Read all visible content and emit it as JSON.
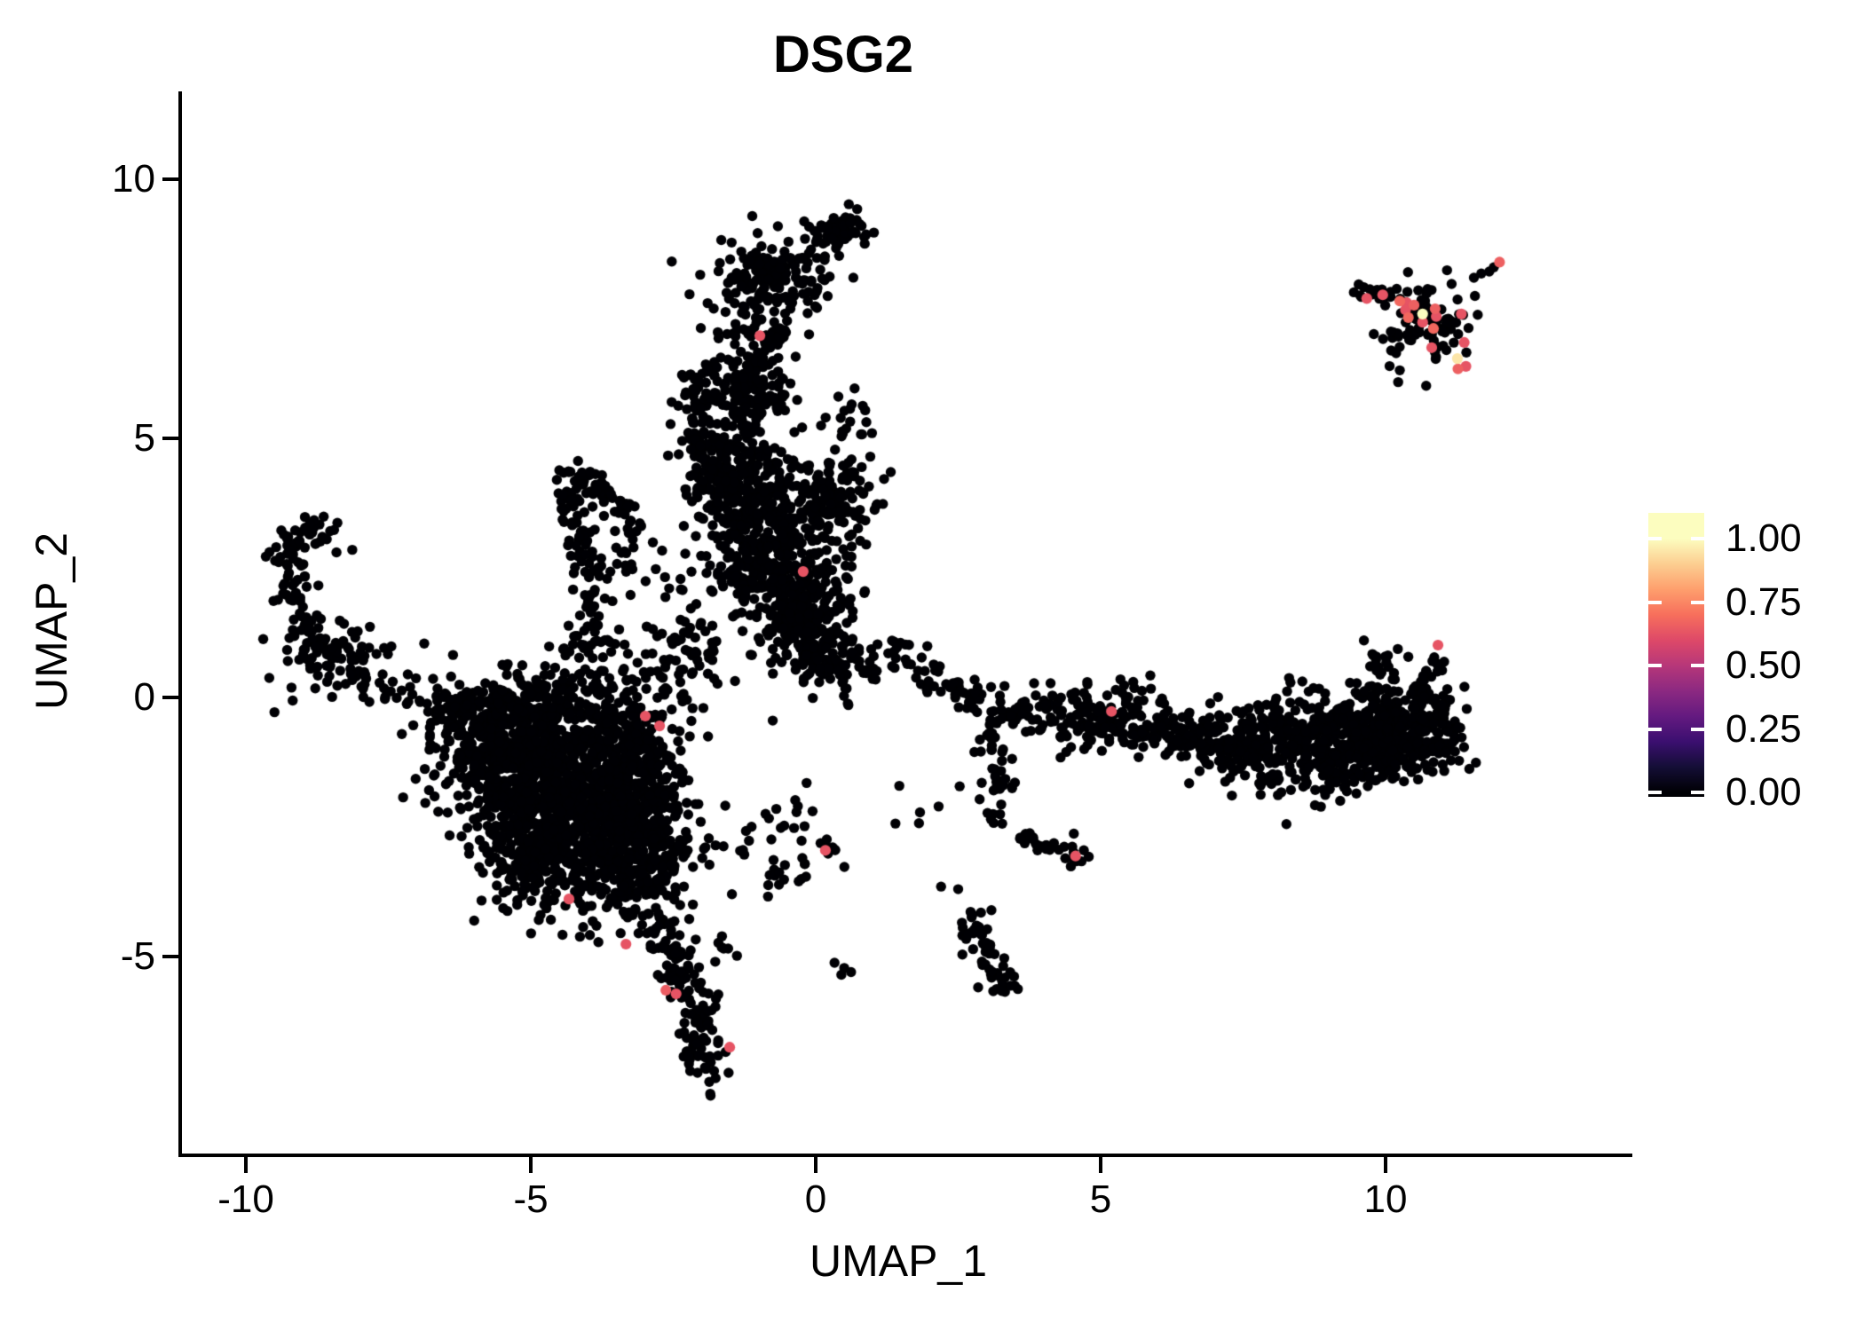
{
  "title": "DSG2",
  "axes": {
    "x": {
      "label": "UMAP_1",
      "ticks": [
        -10,
        -5,
        0,
        5,
        10
      ]
    },
    "y": {
      "label": "UMAP_2",
      "ticks": [
        10,
        5,
        0,
        -5
      ]
    }
  },
  "legend": {
    "tick_labels": [
      "1.00",
      "0.75",
      "0.50",
      "0.25",
      "0.00"
    ],
    "tick_values": [
      1.0,
      0.75,
      0.5,
      0.25,
      0.0
    ]
  },
  "colors": {
    "background": "#ffffff",
    "text": "#000000",
    "axis": "#000000",
    "point_base": "#000004",
    "expressing_pink": "#de4968",
    "highlight_yellow": "#fcfdbf",
    "magma_stops": [
      [
        0.0,
        "#000004"
      ],
      [
        0.1,
        "#140e36"
      ],
      [
        0.2,
        "#3b0f70"
      ],
      [
        0.3,
        "#641a80"
      ],
      [
        0.4,
        "#8c2981"
      ],
      [
        0.5,
        "#b73779"
      ],
      [
        0.6,
        "#de4968"
      ],
      [
        0.7,
        "#f76f5c"
      ],
      [
        0.8,
        "#fe9f6d"
      ],
      [
        0.9,
        "#fcce91"
      ],
      [
        1.0,
        "#fcfdbf"
      ]
    ]
  },
  "chart_data": {
    "type": "scatter",
    "title": "DSG2",
    "xlabel": "UMAP_1",
    "ylabel": "UMAP_2",
    "x_ticks": [
      -10,
      -5,
      0,
      5,
      10
    ],
    "y_ticks": [
      10,
      5,
      0,
      -5
    ],
    "xlim": [
      -11.1,
      14.3
    ],
    "ylim": [
      -8.8,
      11.7
    ],
    "grid": false,
    "legend_position": "right",
    "colorbar": {
      "range": [
        0,
        1
      ],
      "ticks": [
        1.0,
        0.75,
        0.5,
        0.25,
        0.0
      ],
      "palette": "magma"
    },
    "point_radius_px": 5.7,
    "n_points_approx": 5900,
    "clusters": [
      {
        "name": "left-hook",
        "kind": "path",
        "pts": [
          [
            -8.45,
            3.35
          ],
          [
            -9.0,
            3.2
          ],
          [
            -9.3,
            2.6
          ],
          [
            -9.2,
            1.9
          ],
          [
            -8.8,
            1.4
          ]
        ],
        "jitter": 0.16,
        "n": 80
      },
      {
        "name": "left-blob",
        "kind": "gaussian",
        "cx": -8.5,
        "cy": 0.8,
        "sx": 0.45,
        "sy": 0.4,
        "n": 100
      },
      {
        "name": "left-chain",
        "kind": "path",
        "pts": [
          [
            -7.9,
            0.4
          ],
          [
            -7.3,
            0.15
          ],
          [
            -6.7,
            -0.1
          ],
          [
            -6.2,
            -0.3
          ]
        ],
        "jitter": 0.22,
        "n": 40
      },
      {
        "name": "left-strays",
        "kind": "points",
        "pts": [
          [
            -6.87,
            1.04
          ],
          [
            -8.41,
            2.8
          ]
        ]
      },
      {
        "name": "mass-core-1",
        "kind": "gaussian",
        "cx": -5.4,
        "cy": -1.1,
        "sx": 0.65,
        "sy": 0.6,
        "n": 450
      },
      {
        "name": "mass-core-2",
        "kind": "gaussian",
        "cx": -4.4,
        "cy": -2.1,
        "sx": 0.8,
        "sy": 0.75,
        "n": 600
      },
      {
        "name": "mass-right",
        "kind": "gaussian",
        "cx": -3.5,
        "cy": -1.1,
        "sx": 0.55,
        "sy": 0.7,
        "n": 300
      },
      {
        "name": "mass-upperleft",
        "kind": "gaussian",
        "cx": -5.7,
        "cy": -0.35,
        "sx": 0.5,
        "sy": 0.35,
        "n": 120
      },
      {
        "name": "mass-lower-right",
        "kind": "gaussian",
        "cx": -3.2,
        "cy": -3.3,
        "sx": 0.5,
        "sy": 0.55,
        "n": 220
      },
      {
        "name": "mass-lower-left",
        "kind": "gaussian",
        "cx": -4.8,
        "cy": -3.2,
        "sx": 0.5,
        "sy": 0.5,
        "n": 180
      },
      {
        "name": "mass-top-edge",
        "kind": "gaussian",
        "cx": -4.5,
        "cy": -0.1,
        "sx": 0.9,
        "sy": 0.4,
        "n": 130
      },
      {
        "name": "mass-right-edge",
        "kind": "gaussian",
        "cx": -2.9,
        "cy": -2.2,
        "sx": 0.4,
        "sy": 0.6,
        "n": 150
      },
      {
        "name": "mass-tail",
        "kind": "path",
        "pts": [
          [
            -2.85,
            -4.3
          ],
          [
            -2.5,
            -5.0
          ],
          [
            -2.25,
            -5.6
          ],
          [
            -2.1,
            -6.2
          ],
          [
            -2.0,
            -6.9
          ],
          [
            -1.95,
            -7.35
          ]
        ],
        "jitter": 0.2,
        "n": 150
      },
      {
        "name": "tail-side",
        "kind": "gaussian",
        "cx": -1.62,
        "cy": -4.85,
        "sx": 0.12,
        "sy": 0.15,
        "n": 7
      },
      {
        "name": "lambda-ridge",
        "kind": "path",
        "pts": [
          [
            -4.45,
            4.5
          ],
          [
            -3.95,
            4.05
          ],
          [
            -3.5,
            3.7
          ],
          [
            -3.2,
            3.45
          ]
        ],
        "jitter": 0.13,
        "n": 55
      },
      {
        "name": "lambda-leg",
        "kind": "path",
        "pts": [
          [
            -4.5,
            4.3
          ],
          [
            -4.25,
            3.55
          ],
          [
            -4.05,
            2.8
          ],
          [
            -3.95,
            2.1
          ],
          [
            -3.88,
            1.4
          ],
          [
            -3.85,
            0.95
          ]
        ],
        "jitter": 0.15,
        "n": 80
      },
      {
        "name": "lambda-inner",
        "kind": "gaussian",
        "cx": -3.35,
        "cy": 2.85,
        "sx": 0.45,
        "sy": 0.4,
        "n": 35
      },
      {
        "name": "lambda-connector",
        "kind": "path",
        "pts": [
          [
            -3.9,
            0.7
          ],
          [
            -4.2,
            0.3
          ]
        ],
        "jitter": 0.3,
        "n": 25
      },
      {
        "name": "arm-top-blob",
        "kind": "gaussian",
        "cx": 0.45,
        "cy": 9.05,
        "sx": 0.3,
        "sy": 0.2,
        "n": 55
      },
      {
        "name": "arm-head",
        "kind": "gaussian",
        "cx": -0.8,
        "cy": 8.15,
        "sx": 0.5,
        "sy": 0.35,
        "n": 150
      },
      {
        "name": "arm-upper",
        "kind": "path",
        "pts": [
          [
            -0.85,
            7.6
          ],
          [
            -1.0,
            7.0
          ],
          [
            -1.1,
            6.4
          ],
          [
            -1.2,
            5.8
          ],
          [
            -1.35,
            5.2
          ]
        ],
        "jitter": 0.33,
        "n": 220
      },
      {
        "name": "arm-left-branch",
        "kind": "path",
        "pts": [
          [
            -1.95,
            6.25
          ],
          [
            -2.1,
            5.65
          ],
          [
            -2.1,
            5.05
          ],
          [
            -1.95,
            4.6
          ]
        ],
        "jitter": 0.22,
        "n": 80
      },
      {
        "name": "arm-mid",
        "kind": "gaussian",
        "cx": -1.35,
        "cy": 4.25,
        "sx": 0.5,
        "sy": 0.45,
        "n": 180
      },
      {
        "name": "arm-low-1",
        "kind": "gaussian",
        "cx": -0.95,
        "cy": 3.3,
        "sx": 0.55,
        "sy": 0.55,
        "n": 240
      },
      {
        "name": "arm-low-2",
        "kind": "gaussian",
        "cx": -0.5,
        "cy": 2.3,
        "sx": 0.5,
        "sy": 0.45,
        "n": 210
      },
      {
        "name": "arm-low-3",
        "kind": "gaussian",
        "cx": -0.2,
        "cy": 1.5,
        "sx": 0.45,
        "sy": 0.4,
        "n": 160
      },
      {
        "name": "arm-right-blob",
        "kind": "gaussian",
        "cx": 0.35,
        "cy": 3.8,
        "sx": 0.38,
        "sy": 0.42,
        "n": 110
      },
      {
        "name": "arm-right-edge",
        "kind": "gaussian",
        "cx": 0.5,
        "cy": 5.2,
        "sx": 0.3,
        "sy": 0.5,
        "n": 25
      },
      {
        "name": "arm-neck",
        "kind": "gaussian",
        "cx": 0.3,
        "cy": 0.7,
        "sx": 0.45,
        "sy": 0.35,
        "n": 90
      },
      {
        "name": "bridge-sparse",
        "kind": "gaussian",
        "cx": -2.3,
        "cy": 0.9,
        "sx": 0.55,
        "sy": 0.65,
        "n": 80
      },
      {
        "name": "mid-sparse",
        "kind": "gaussian",
        "cx": -0.6,
        "cy": -2.7,
        "sx": 0.7,
        "sy": 0.6,
        "n": 30
      },
      {
        "name": "mid-clump-a",
        "kind": "gaussian",
        "cx": -0.75,
        "cy": -3.45,
        "sx": 0.18,
        "sy": 0.18,
        "n": 9
      },
      {
        "name": "mid-clump-b",
        "kind": "gaussian",
        "cx": 0.25,
        "cy": -2.88,
        "sx": 0.12,
        "sy": 0.12,
        "n": 8
      },
      {
        "name": "mid-strays",
        "kind": "points",
        "pts": [
          [
            -0.17,
            -3.46
          ],
          [
            0.33,
            -5.12
          ],
          [
            0.5,
            -5.22
          ],
          [
            0.62,
            -5.3
          ],
          [
            0.45,
            -5.35
          ],
          [
            2.2,
            -3.65
          ],
          [
            2.5,
            -3.7
          ]
        ]
      },
      {
        "name": "rarm-start",
        "kind": "path",
        "pts": [
          [
            1.35,
            0.9
          ],
          [
            1.9,
            0.5
          ],
          [
            2.45,
            0.12
          ],
          [
            3.0,
            -0.15
          ],
          [
            3.55,
            -0.32
          ],
          [
            4.0,
            -0.42
          ]
        ],
        "jitter": 0.17,
        "n": 90
      },
      {
        "name": "rarm-band",
        "kind": "path",
        "pts": [
          [
            4.1,
            -0.5
          ],
          [
            4.8,
            -0.52
          ],
          [
            5.5,
            -0.58
          ],
          [
            6.2,
            -0.68
          ],
          [
            6.9,
            -0.88
          ],
          [
            7.6,
            -1.05
          ]
        ],
        "jitter": 0.24,
        "n": 240
      },
      {
        "name": "rarm-above",
        "kind": "gaussian",
        "cx": 5.1,
        "cy": -0.08,
        "sx": 0.9,
        "sy": 0.22,
        "n": 40
      },
      {
        "name": "rarm-mass-1",
        "kind": "gaussian",
        "cx": 8.5,
        "cy": -0.95,
        "sx": 0.75,
        "sy": 0.45,
        "n": 360
      },
      {
        "name": "rarm-mass-2",
        "kind": "gaussian",
        "cx": 9.8,
        "cy": -0.75,
        "sx": 0.55,
        "sy": 0.5,
        "n": 280
      },
      {
        "name": "rarm-tip",
        "kind": "gaussian",
        "cx": 10.7,
        "cy": -0.55,
        "sx": 0.38,
        "sy": 0.42,
        "n": 150
      },
      {
        "name": "rarm-rise",
        "kind": "path",
        "pts": [
          [
            10.55,
            -0.05
          ],
          [
            10.8,
            0.45
          ],
          [
            10.88,
            0.8
          ]
        ],
        "jitter": 0.1,
        "n": 22
      },
      {
        "name": "rarm-mini",
        "kind": "gaussian",
        "cx": 9.95,
        "cy": 0.75,
        "sx": 0.13,
        "sy": 0.22,
        "n": 13
      },
      {
        "name": "rarm-single",
        "kind": "points",
        "pts": [
          [
            9.62,
            1.1
          ]
        ]
      },
      {
        "name": "rbranch-down",
        "kind": "path",
        "pts": [
          [
            3.05,
            -0.7
          ],
          [
            3.2,
            -1.3
          ],
          [
            3.3,
            -1.9
          ],
          [
            3.15,
            -2.45
          ]
        ],
        "jitter": 0.14,
        "n": 40
      },
      {
        "name": "rbranch-chain",
        "kind": "path",
        "pts": [
          [
            3.5,
            -2.6
          ],
          [
            3.9,
            -2.8
          ],
          [
            4.25,
            -2.95
          ]
        ],
        "jitter": 0.1,
        "n": 20
      },
      {
        "name": "rbranch-clump",
        "kind": "gaussian",
        "cx": 4.55,
        "cy": -3.05,
        "sx": 0.14,
        "sy": 0.12,
        "n": 11
      },
      {
        "name": "rdrip",
        "kind": "path",
        "pts": [
          [
            2.75,
            -4.25
          ],
          [
            2.95,
            -4.7
          ],
          [
            3.1,
            -5.1
          ],
          [
            3.3,
            -5.5
          ],
          [
            3.42,
            -5.75
          ]
        ],
        "jitter": 0.15,
        "n": 60
      },
      {
        "name": "rbelow-sparse",
        "kind": "gaussian",
        "cx": 2.2,
        "cy": -1.7,
        "sx": 0.45,
        "sy": 0.45,
        "n": 8
      },
      {
        "name": "topright-main",
        "kind": "gaussian",
        "cx": 10.75,
        "cy": 7.25,
        "sx": 0.42,
        "sy": 0.4,
        "n": 85
      },
      {
        "name": "topright-left-chain",
        "kind": "path",
        "pts": [
          [
            9.45,
            7.85
          ],
          [
            9.8,
            7.75
          ],
          [
            10.15,
            7.68
          ]
        ],
        "jitter": 0.09,
        "n": 20
      },
      {
        "name": "topright-top-chain",
        "kind": "points",
        "pts": [
          [
            11.55,
            8.1
          ],
          [
            11.68,
            8.18
          ],
          [
            11.82,
            8.22
          ],
          [
            11.9,
            8.3
          ]
        ]
      }
    ],
    "expressing_points": [
      [
        -2.99,
        -0.36,
        0.63
      ],
      [
        -2.74,
        -0.55,
        0.63
      ],
      [
        -4.33,
        -3.89,
        0.63
      ],
      [
        -3.33,
        -4.76,
        0.63
      ],
      [
        -2.63,
        -5.65,
        0.65
      ],
      [
        -2.45,
        -5.72,
        0.63
      ],
      [
        -1.51,
        -6.75,
        0.63
      ],
      [
        0.17,
        -2.95,
        0.63
      ],
      [
        4.56,
        -3.06,
        0.63
      ],
      [
        5.19,
        -0.27,
        0.63
      ],
      [
        -0.98,
        6.98,
        0.63
      ],
      [
        -0.22,
        2.43,
        0.63
      ],
      [
        10.92,
        1.01,
        0.63
      ],
      [
        12.0,
        8.4,
        0.66
      ],
      [
        9.67,
        7.7,
        0.63
      ],
      [
        9.95,
        7.77,
        0.63
      ],
      [
        10.25,
        7.65,
        0.68
      ],
      [
        10.37,
        7.62,
        0.63
      ],
      [
        10.5,
        7.57,
        0.66
      ],
      [
        10.35,
        7.48,
        0.63
      ],
      [
        10.4,
        7.33,
        0.68
      ],
      [
        10.65,
        7.24,
        0.63
      ],
      [
        10.87,
        7.5,
        0.66
      ],
      [
        10.89,
        7.35,
        0.63
      ],
      [
        11.33,
        7.4,
        0.63
      ],
      [
        10.84,
        7.12,
        0.68
      ],
      [
        10.81,
        6.75,
        0.63
      ],
      [
        11.38,
        6.85,
        0.63
      ],
      [
        11.41,
        6.39,
        0.63
      ],
      [
        11.27,
        6.34,
        0.66
      ],
      [
        10.65,
        7.4,
        1.0
      ],
      [
        11.26,
        6.54,
        0.95
      ]
    ]
  }
}
